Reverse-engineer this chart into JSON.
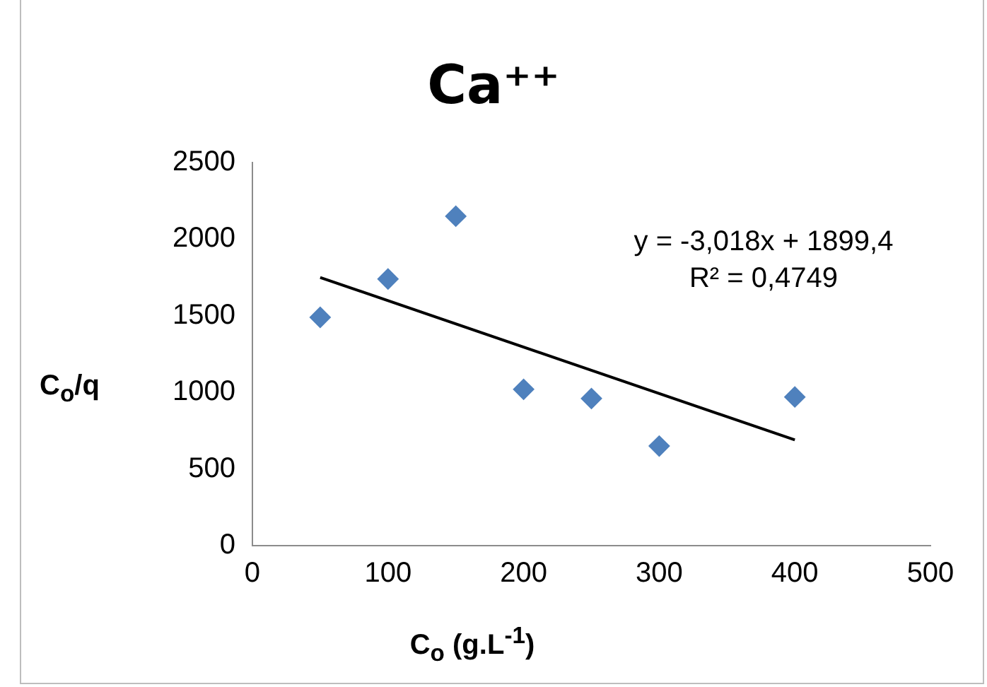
{
  "chart_data": {
    "type": "scatter",
    "title": "Ca⁺⁺",
    "xlabel": "C$_{o}$ (g.L$^{-1}$)",
    "ylabel": "C$_{o}$/q",
    "series": [
      {
        "type": "scatter",
        "color": "#4f81bd",
        "x": [
          50,
          100,
          150,
          200,
          250,
          300,
          400
        ],
        "values": [
          1490,
          1740,
          2150,
          1020,
          960,
          650,
          970
        ],
        "marker": "diamond"
      },
      {
        "type": "line",
        "color": "#000000",
        "x": [
          50,
          400
        ],
        "values": [
          1750,
          690
        ],
        "marker": "none",
        "line_style": "solid"
      }
    ],
    "xlim": [
      0,
      500
    ],
    "xticks": [
      0,
      100,
      200,
      300,
      400,
      500
    ],
    "ylim": [
      0,
      2500
    ],
    "yticks": [
      0,
      500,
      1000,
      1500,
      2000,
      2500
    ],
    "grid": false,
    "legend": false,
    "annotations": [
      "y = -3,018x + 1899,4",
      "R² = 0,4749"
    ]
  }
}
